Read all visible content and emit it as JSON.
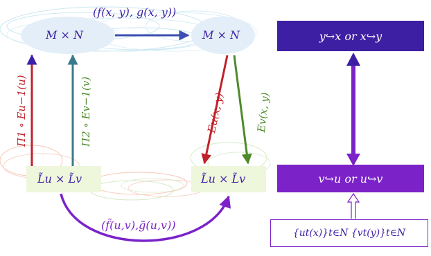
{
  "nodes": {
    "top_left": "M × N",
    "top_right": "M × N",
    "bottom_left": "L̃u × L̃v",
    "bottom_right": "L̃u × L̃v"
  },
  "edges": {
    "top": "(f(x, y), g(x, y))",
    "bottom": "(f̃(u,v),g̃(u,v))",
    "left_red": "Π1 ∘ Eu−1(u)",
    "left_teal": "Π2 ∘ Ev−1(v)",
    "right_red": "Eu(x, y)",
    "right_green": "Ev(x, y)"
  },
  "right_panel": {
    "top_box": "y↪x or x↪y",
    "mid_box": "v↪u or u↪v",
    "bottom_box": "{ut(x)}t∈N {vt(y)}t∈N"
  },
  "colors": {
    "dark_purple": "#3d1fa3",
    "purple": "#7b22c9",
    "red": "#c0222a",
    "green": "#4e8a2a",
    "teal": "#3a7a8c",
    "blue_arrow": "#3a4fb0"
  }
}
